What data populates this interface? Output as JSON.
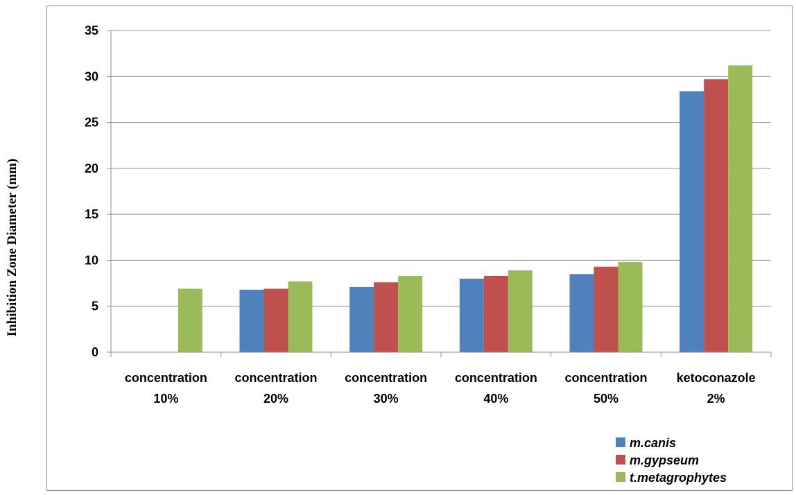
{
  "chart_data": {
    "type": "bar",
    "title": "",
    "xlabel": "",
    "ylabel": "Inhibition Zone Diameter (mm)",
    "ylim": [
      0,
      35
    ],
    "yticks": [
      0,
      5,
      10,
      15,
      20,
      25,
      30,
      35
    ],
    "grid": true,
    "legend_position": "bottom-right",
    "categories": [
      [
        "concentration",
        "10%"
      ],
      [
        "concentration",
        "20%"
      ],
      [
        "concentration",
        "30%"
      ],
      [
        "concentration",
        "40%"
      ],
      [
        "concentration",
        "50%"
      ],
      [
        "ketoconazole",
        "2%"
      ]
    ],
    "series": [
      {
        "name": "m.canis",
        "color": "#4f81bd",
        "values": [
          0,
          6.8,
          7.1,
          8.0,
          8.5,
          28.4
        ]
      },
      {
        "name": "m.gypseum",
        "color": "#c0504d",
        "values": [
          0,
          6.9,
          7.6,
          8.3,
          9.3,
          29.7
        ]
      },
      {
        "name": "t.metagrophytes",
        "color": "#9bbb59",
        "values": [
          6.9,
          7.7,
          8.3,
          8.9,
          9.8,
          31.2
        ]
      }
    ]
  }
}
